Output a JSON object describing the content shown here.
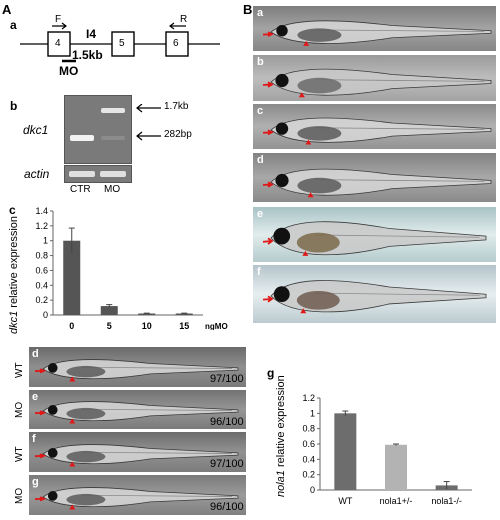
{
  "panel_A": {
    "label": "A",
    "a": {
      "label": "a",
      "primer_f": "F",
      "primer_r": "R",
      "intron": "I4",
      "exon_4": "4",
      "exon_5": "5",
      "exon_6": "6",
      "size": "1.5kb",
      "morpholino": "MO"
    },
    "b": {
      "label": "b",
      "gene": "dkc1",
      "control_gene": "actin",
      "band_upper": "1.7kb",
      "band_lower": "282bp",
      "lane_ctr": "CTR",
      "lane_mo": "MO"
    },
    "c": {
      "label": "c",
      "ylabel_gene": "dkc1",
      "ylabel_rest": " relative expression",
      "xunit": "ngMO"
    },
    "d": {
      "label": "d",
      "tag": "WT",
      "ratio": "97/100"
    },
    "e": {
      "label": "e",
      "tag": "MO",
      "ratio": "96/100"
    },
    "f": {
      "label": "f",
      "tag": "WT",
      "ratio": "97/100"
    },
    "g": {
      "label": "g",
      "tag": "MO",
      "ratio": "96/100"
    }
  },
  "panel_B": {
    "label": "B",
    "sub": [
      "a",
      "b",
      "c",
      "d",
      "e",
      "f"
    ]
  },
  "panel_g": {
    "label": "g",
    "ylabel_gene": "nola1",
    "ylabel_rest": " relative expression"
  },
  "chart_data": [
    {
      "type": "bar",
      "categories": [
        "0",
        "5",
        "10",
        "15"
      ],
      "values": [
        1.0,
        0.12,
        0.02,
        0.02
      ],
      "errors": [
        0.17,
        0.02,
        0.005,
        0.005
      ],
      "yticks": [
        "0",
        "0.2",
        "0.4",
        "0.6",
        "0.8",
        "1",
        "1.2",
        "1.4"
      ],
      "ylim": [
        0,
        1.4
      ],
      "xlabel": "ngMO",
      "ylabel": "dkc1 relative expression",
      "colors": [
        "#555555"
      ]
    },
    {
      "type": "bar",
      "categories": [
        "WT",
        "nola1+/-",
        "nola1-/-"
      ],
      "values": [
        1.0,
        0.59,
        0.06
      ],
      "errors": [
        0.03,
        0.01,
        0.05
      ],
      "yticks": [
        "0",
        "0.2",
        "0.4",
        "0.6",
        "0.8",
        "1",
        "1.2"
      ],
      "ylim": [
        0,
        1.2
      ],
      "ylabel": "nola1 relative expression",
      "colors": [
        "#6d6d6d",
        "#b3b3b3",
        "#6d6d6d"
      ]
    }
  ]
}
